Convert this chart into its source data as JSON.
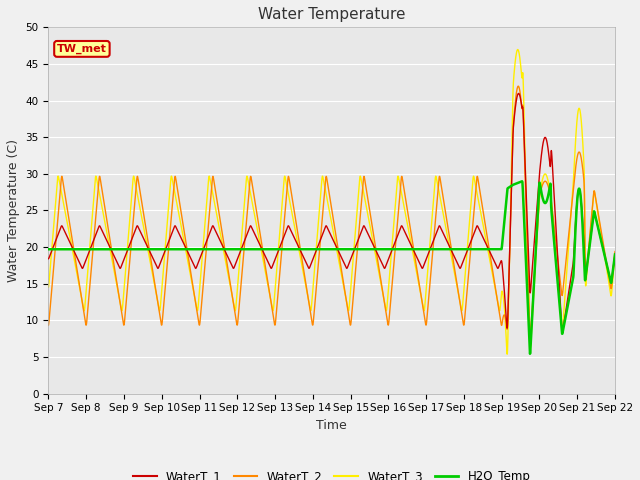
{
  "title": "Water Temperature",
  "xlabel": "Time",
  "ylabel": "Water Temperature (C)",
  "ylim": [
    0,
    50
  ],
  "plot_bg_color": "#e8e8e8",
  "fig_bg_color": "#f0f0f0",
  "annotation_text": "TW_met",
  "annotation_bg": "#ffff99",
  "annotation_border": "#cc0000",
  "colors": {
    "WaterT_1": "#cc0000",
    "WaterT_2": "#ff8800",
    "WaterT_3": "#ffee00",
    "H2O_Temp": "#00cc00"
  },
  "legend_labels": [
    "WaterT_1",
    "WaterT_2",
    "WaterT_3",
    "H2O_Temp"
  ],
  "xtick_labels": [
    "Sep 7",
    "Sep 8",
    "Sep 9",
    "Sep 10",
    "Sep 11",
    "Sep 12",
    "Sep 13",
    "Sep 14",
    "Sep 15",
    "Sep 16",
    "Sep 17",
    "Sep 18",
    "Sep 19",
    "Sep 20",
    "Sep 21",
    "Sep 22"
  ],
  "grid_color": "#ffffff",
  "title_fontsize": 11,
  "axis_label_fontsize": 9,
  "tick_fontsize": 7.5
}
